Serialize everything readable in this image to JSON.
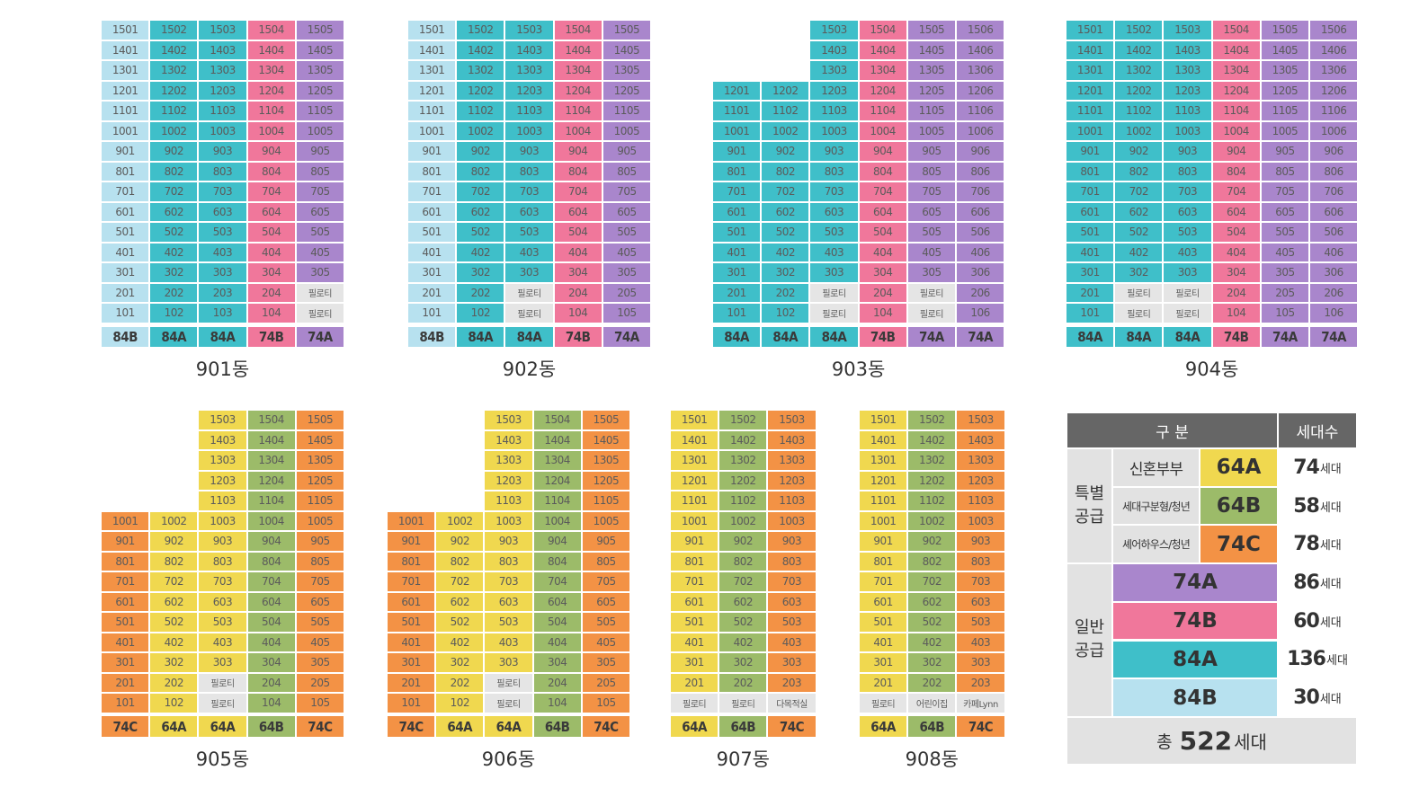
{
  "colors": {
    "84B": "#b7e1ef",
    "84A": "#3fbfc9",
    "74B": "#f0779b",
    "74A": "#a986cc",
    "64A": "#f0d84f",
    "64B": "#9cbb69",
    "74C": "#f39245",
    "piloti": "#e5e5e5",
    "header": "#666666",
    "summary_bg": "#e2e2e2",
    "white": "#ffffff"
  },
  "buildings": [
    {
      "name": "901동",
      "columns": [
        {
          "type": "84B",
          "top": 15,
          "suffix": "01",
          "special": {}
        },
        {
          "type": "84A",
          "top": 15,
          "suffix": "02",
          "special": {}
        },
        {
          "type": "84A",
          "top": 15,
          "suffix": "03",
          "special": {}
        },
        {
          "type": "74B",
          "top": 15,
          "suffix": "04",
          "special": {}
        },
        {
          "type": "74A",
          "top": 15,
          "suffix": "05",
          "special": {
            "1": "필로티",
            "2": "필로티"
          }
        }
      ]
    },
    {
      "name": "902동",
      "columns": [
        {
          "type": "84B",
          "top": 15,
          "suffix": "01",
          "special": {}
        },
        {
          "type": "84A",
          "top": 15,
          "suffix": "02",
          "special": {}
        },
        {
          "type": "84A",
          "top": 15,
          "suffix": "03",
          "special": {
            "1": "필로티",
            "2": "필로티"
          }
        },
        {
          "type": "74B",
          "top": 15,
          "suffix": "04",
          "special": {}
        },
        {
          "type": "74A",
          "top": 15,
          "suffix": "05",
          "special": {}
        }
      ]
    },
    {
      "name": "903동",
      "columns": [
        {
          "type": "84A",
          "top": 12,
          "suffix": "01",
          "special": {}
        },
        {
          "type": "84A",
          "top": 12,
          "suffix": "02",
          "special": {}
        },
        {
          "type": "84A",
          "top": 15,
          "suffix": "03",
          "special": {
            "1": "필로티",
            "2": "필로티"
          }
        },
        {
          "type": "74B",
          "top": 15,
          "suffix": "04",
          "special": {}
        },
        {
          "type": "74A",
          "top": 15,
          "suffix": "05",
          "special": {
            "1": "필로티",
            "2": "필로티"
          }
        },
        {
          "type": "74A",
          "top": 15,
          "suffix": "06",
          "special": {}
        }
      ]
    },
    {
      "name": "904동",
      "columns": [
        {
          "type": "84A",
          "top": 15,
          "suffix": "01",
          "special": {}
        },
        {
          "type": "84A",
          "top": 15,
          "suffix": "02",
          "special": {
            "1": "필로티",
            "2": "필로티"
          }
        },
        {
          "type": "84A",
          "top": 15,
          "suffix": "03",
          "special": {
            "1": "필로티",
            "2": "필로티"
          }
        },
        {
          "type": "74B",
          "top": 15,
          "suffix": "04",
          "special": {}
        },
        {
          "type": "74A",
          "top": 15,
          "suffix": "05",
          "special": {}
        },
        {
          "type": "74A",
          "top": 15,
          "suffix": "06",
          "special": {}
        }
      ]
    },
    {
      "name": "905동",
      "columns": [
        {
          "type": "74C",
          "top": 10,
          "suffix": "01",
          "special": {}
        },
        {
          "type": "64A",
          "top": 10,
          "suffix": "02",
          "special": {}
        },
        {
          "type": "64A",
          "top": 15,
          "suffix": "03",
          "special": {
            "1": "필로티",
            "2": "필로티"
          }
        },
        {
          "type": "64B",
          "top": 15,
          "suffix": "04",
          "special": {}
        },
        {
          "type": "74C",
          "top": 15,
          "suffix": "05",
          "special": {}
        }
      ]
    },
    {
      "name": "906동",
      "columns": [
        {
          "type": "74C",
          "top": 10,
          "suffix": "01",
          "special": {}
        },
        {
          "type": "64A",
          "top": 10,
          "suffix": "02",
          "special": {}
        },
        {
          "type": "64A",
          "top": 15,
          "suffix": "03",
          "special": {
            "1": "필로티",
            "2": "필로티"
          }
        },
        {
          "type": "64B",
          "top": 15,
          "suffix": "04",
          "special": {}
        },
        {
          "type": "74C",
          "top": 15,
          "suffix": "05",
          "special": {}
        }
      ]
    },
    {
      "name": "907동",
      "columns": [
        {
          "type": "64A",
          "top": 15,
          "suffix": "01",
          "special": {
            "1": "필로티"
          }
        },
        {
          "type": "64B",
          "top": 15,
          "suffix": "02",
          "special": {
            "1": "필로티"
          }
        },
        {
          "type": "74C",
          "top": 15,
          "suffix": "03",
          "special": {
            "1": "다목적실"
          }
        }
      ]
    },
    {
      "name": "908동",
      "columns": [
        {
          "type": "64A",
          "top": 15,
          "suffix": "01",
          "special": {
            "1": "필로티"
          }
        },
        {
          "type": "64B",
          "top": 15,
          "suffix": "02",
          "special": {
            "1": "어린이집"
          }
        },
        {
          "type": "74C",
          "top": 15,
          "suffix": "03",
          "special": {
            "1": "카페Lynn"
          }
        }
      ]
    }
  ],
  "summary": {
    "header_category": "구 분",
    "header_count": "세대수",
    "special_supply": "특별\n공급",
    "general_supply": "일반\n공급",
    "rows": [
      {
        "label": "신혼부부",
        "type": "64A",
        "count": "74",
        "unit": "세대"
      },
      {
        "label": "세대구분형/청년",
        "type": "64B",
        "count": "58",
        "unit": "세대"
      },
      {
        "label": "셰어하우스/청년",
        "type": "74C",
        "count": "78",
        "unit": "세대"
      },
      {
        "label": "",
        "type": "74A",
        "count": "86",
        "unit": "세대"
      },
      {
        "label": "",
        "type": "74B",
        "count": "60",
        "unit": "세대"
      },
      {
        "label": "",
        "type": "84A",
        "count": "136",
        "unit": "세대"
      },
      {
        "label": "",
        "type": "84B",
        "count": "30",
        "unit": "세대"
      }
    ],
    "total_prefix": "총",
    "total_count": "522",
    "total_unit": "세대"
  }
}
